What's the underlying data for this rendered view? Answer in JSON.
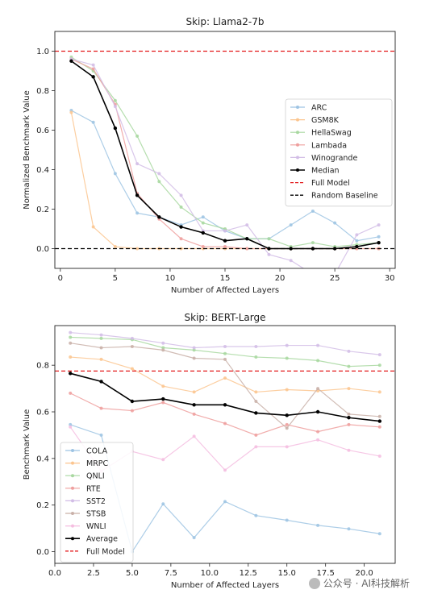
{
  "chart_data": [
    {
      "type": "line",
      "title": "Skip: Llama2-7b",
      "xlabel": "Number of Affected Layers",
      "ylabel": "Normalized Benchmark Value",
      "xlim": [
        -0.5,
        30.5
      ],
      "ylim": [
        -0.1,
        1.1
      ],
      "xticks": [
        0,
        5,
        10,
        15,
        20,
        25,
        30
      ],
      "yticks": [
        0.0,
        0.2,
        0.4,
        0.6,
        0.8,
        1.0
      ],
      "legend_position": "center-right",
      "x": [
        1,
        3,
        5,
        7,
        9,
        11,
        13,
        15,
        17,
        19,
        21,
        23,
        25,
        27,
        29
      ],
      "series": [
        {
          "name": "ARC",
          "color": "#9ec4e3",
          "values": [
            0.7,
            0.64,
            0.38,
            0.18,
            0.16,
            0.12,
            0.16,
            0.09,
            0.05,
            0.05,
            0.12,
            0.19,
            0.13,
            0.04,
            0.06
          ]
        },
        {
          "name": "GSM8K",
          "color": "#fbc58f",
          "values": [
            0.69,
            0.11,
            0.01,
            0.0,
            0.0,
            0.0,
            0.0,
            0.0,
            0.0,
            0.0,
            0.0,
            0.0,
            0.0,
            0.0,
            0.0
          ]
        },
        {
          "name": "HellaSwag",
          "color": "#a8d8a0",
          "values": [
            0.97,
            0.9,
            0.75,
            0.57,
            0.34,
            0.21,
            0.13,
            0.1,
            0.05,
            0.05,
            0.01,
            0.03,
            0.01,
            0.02,
            0.03
          ]
        },
        {
          "name": "Lambada",
          "color": "#ef9f9e",
          "values": [
            0.96,
            0.91,
            0.73,
            0.28,
            0.15,
            0.05,
            0.01,
            0.01,
            0.0,
            0.0,
            0.0,
            0.0,
            0.0,
            0.0,
            0.0
          ]
        },
        {
          "name": "Winogrande",
          "color": "#d2bde6",
          "values": [
            0.96,
            0.93,
            0.72,
            0.43,
            0.38,
            0.27,
            0.09,
            0.09,
            0.12,
            -0.03,
            -0.06,
            -0.13,
            -0.13,
            0.07,
            0.12
          ]
        },
        {
          "name": "Median",
          "color": "#000000",
          "values": [
            0.95,
            0.87,
            0.61,
            0.27,
            0.16,
            0.11,
            0.08,
            0.04,
            0.05,
            0.0,
            0.0,
            0.0,
            0.0,
            0.01,
            0.03
          ]
        }
      ],
      "reference_lines": [
        {
          "name": "Full Model",
          "y": 1.0,
          "color": "#e31a1c"
        },
        {
          "name": "Random Baseline",
          "y": 0.0,
          "color": "#000000"
        }
      ]
    },
    {
      "type": "line",
      "title": "Skip: BERT-Large",
      "xlabel": "Number of Affected Layers",
      "ylabel": "Benchmark Value",
      "xlim": [
        0.0,
        22.0
      ],
      "ylim": [
        -0.05,
        0.97
      ],
      "xticks": [
        0.0,
        2.5,
        5.0,
        7.5,
        10.0,
        12.5,
        15.0,
        17.5,
        20.0
      ],
      "xtick_labels": [
        "0.0",
        "2.5",
        "5.0",
        "7.5",
        "10.0",
        "12.5",
        "15.0",
        "17.5",
        "20.0"
      ],
      "yticks": [
        0.0,
        0.2,
        0.4,
        0.6,
        0.8
      ],
      "legend_position": "lower-left",
      "x": [
        1,
        3,
        5,
        7,
        9,
        11,
        13,
        15,
        17,
        19,
        21
      ],
      "series": [
        {
          "name": "COLA",
          "color": "#9ec4e3",
          "values": [
            0.545,
            0.5,
            0.0,
            0.205,
            0.06,
            0.215,
            0.155,
            0.135,
            0.113,
            0.098,
            0.077
          ]
        },
        {
          "name": "MRPC",
          "color": "#fbc58f",
          "values": [
            0.835,
            0.825,
            0.785,
            0.71,
            0.685,
            0.745,
            0.685,
            0.695,
            0.69,
            0.7,
            0.685
          ]
        },
        {
          "name": "QNLI",
          "color": "#a8d8a0",
          "values": [
            0.92,
            0.915,
            0.91,
            0.875,
            0.865,
            0.85,
            0.835,
            0.83,
            0.82,
            0.795,
            0.8
          ]
        },
        {
          "name": "RTE",
          "color": "#ef9f9e",
          "values": [
            0.68,
            0.615,
            0.605,
            0.64,
            0.59,
            0.55,
            0.5,
            0.545,
            0.515,
            0.545,
            0.535
          ]
        },
        {
          "name": "SST2",
          "color": "#d2bde6",
          "values": [
            0.94,
            0.93,
            0.915,
            0.895,
            0.875,
            0.88,
            0.88,
            0.885,
            0.885,
            0.86,
            0.845
          ]
        },
        {
          "name": "STSB",
          "color": "#c9b0a8",
          "values": [
            0.895,
            0.875,
            0.88,
            0.865,
            0.83,
            0.825,
            0.645,
            0.53,
            0.7,
            0.59,
            0.58
          ]
        },
        {
          "name": "WNLI",
          "color": "#f5bde0",
          "values": [
            0.535,
            0.345,
            0.43,
            0.395,
            0.495,
            0.35,
            0.45,
            0.45,
            0.48,
            0.435,
            0.41
          ]
        },
        {
          "name": "Average",
          "color": "#000000",
          "values": [
            0.765,
            0.73,
            0.645,
            0.655,
            0.63,
            0.63,
            0.595,
            0.585,
            0.6,
            0.575,
            0.56
          ]
        }
      ],
      "reference_lines": [
        {
          "name": "Full Model",
          "y": 0.775,
          "color": "#e31a1c"
        }
      ]
    }
  ],
  "watermark": "公众号 · AI科技解析"
}
